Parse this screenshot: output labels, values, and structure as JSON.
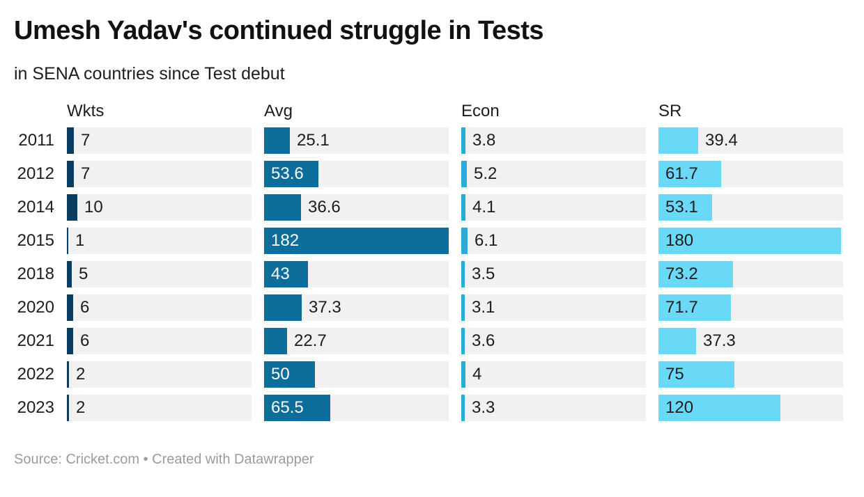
{
  "title": "Umesh Yadav's continued struggle in Tests",
  "subtitle": "in SENA countries since Test debut",
  "footer": "Source: Cricket.com • Created with Datawrapper",
  "colors": {
    "wkts_bar": "#0b3c61",
    "avg_bar": "#0d6e9b",
    "econ_bar": "#29acd8",
    "sr_bar": "#6ad9f8",
    "track": "#f1f1f1",
    "text_dark": "#1d1d1d",
    "label_on_dark_bar": "#ffffff",
    "footer_text": "#9b9b9b"
  },
  "chart_data": {
    "type": "bar",
    "orientation": "horizontal",
    "title": "Umesh Yadav's continued struggle in Tests",
    "subtitle": "in SENA countries since Test debut",
    "categories": [
      "2011",
      "2012",
      "2014",
      "2015",
      "2018",
      "2020",
      "2021",
      "2022",
      "2023"
    ],
    "series": [
      {
        "name": "Wkts",
        "values": [
          7,
          7,
          10,
          1,
          5,
          6,
          6,
          2,
          2
        ],
        "color": "#0b3c61",
        "inside_label_color": "#ffffff"
      },
      {
        "name": "Avg",
        "values": [
          25.1,
          53.6,
          36.6,
          182,
          43,
          37.3,
          22.7,
          50,
          65.5
        ],
        "color": "#0d6e9b",
        "inside_label_color": "#ffffff"
      },
      {
        "name": "Econ",
        "values": [
          3.8,
          5.2,
          4.1,
          6.1,
          3.5,
          3.1,
          3.6,
          4,
          3.3
        ],
        "color": "#29acd8",
        "inside_label_color": "#1d1d1d"
      },
      {
        "name": "SR",
        "values": [
          39.4,
          61.7,
          53.1,
          180,
          73.2,
          71.7,
          37.3,
          75,
          120
        ],
        "color": "#6ad9f8",
        "inside_label_color": "#1d1d1d"
      }
    ],
    "xmax": 182,
    "xmin": 0,
    "grid": false,
    "legend": false,
    "value_labels": true
  }
}
